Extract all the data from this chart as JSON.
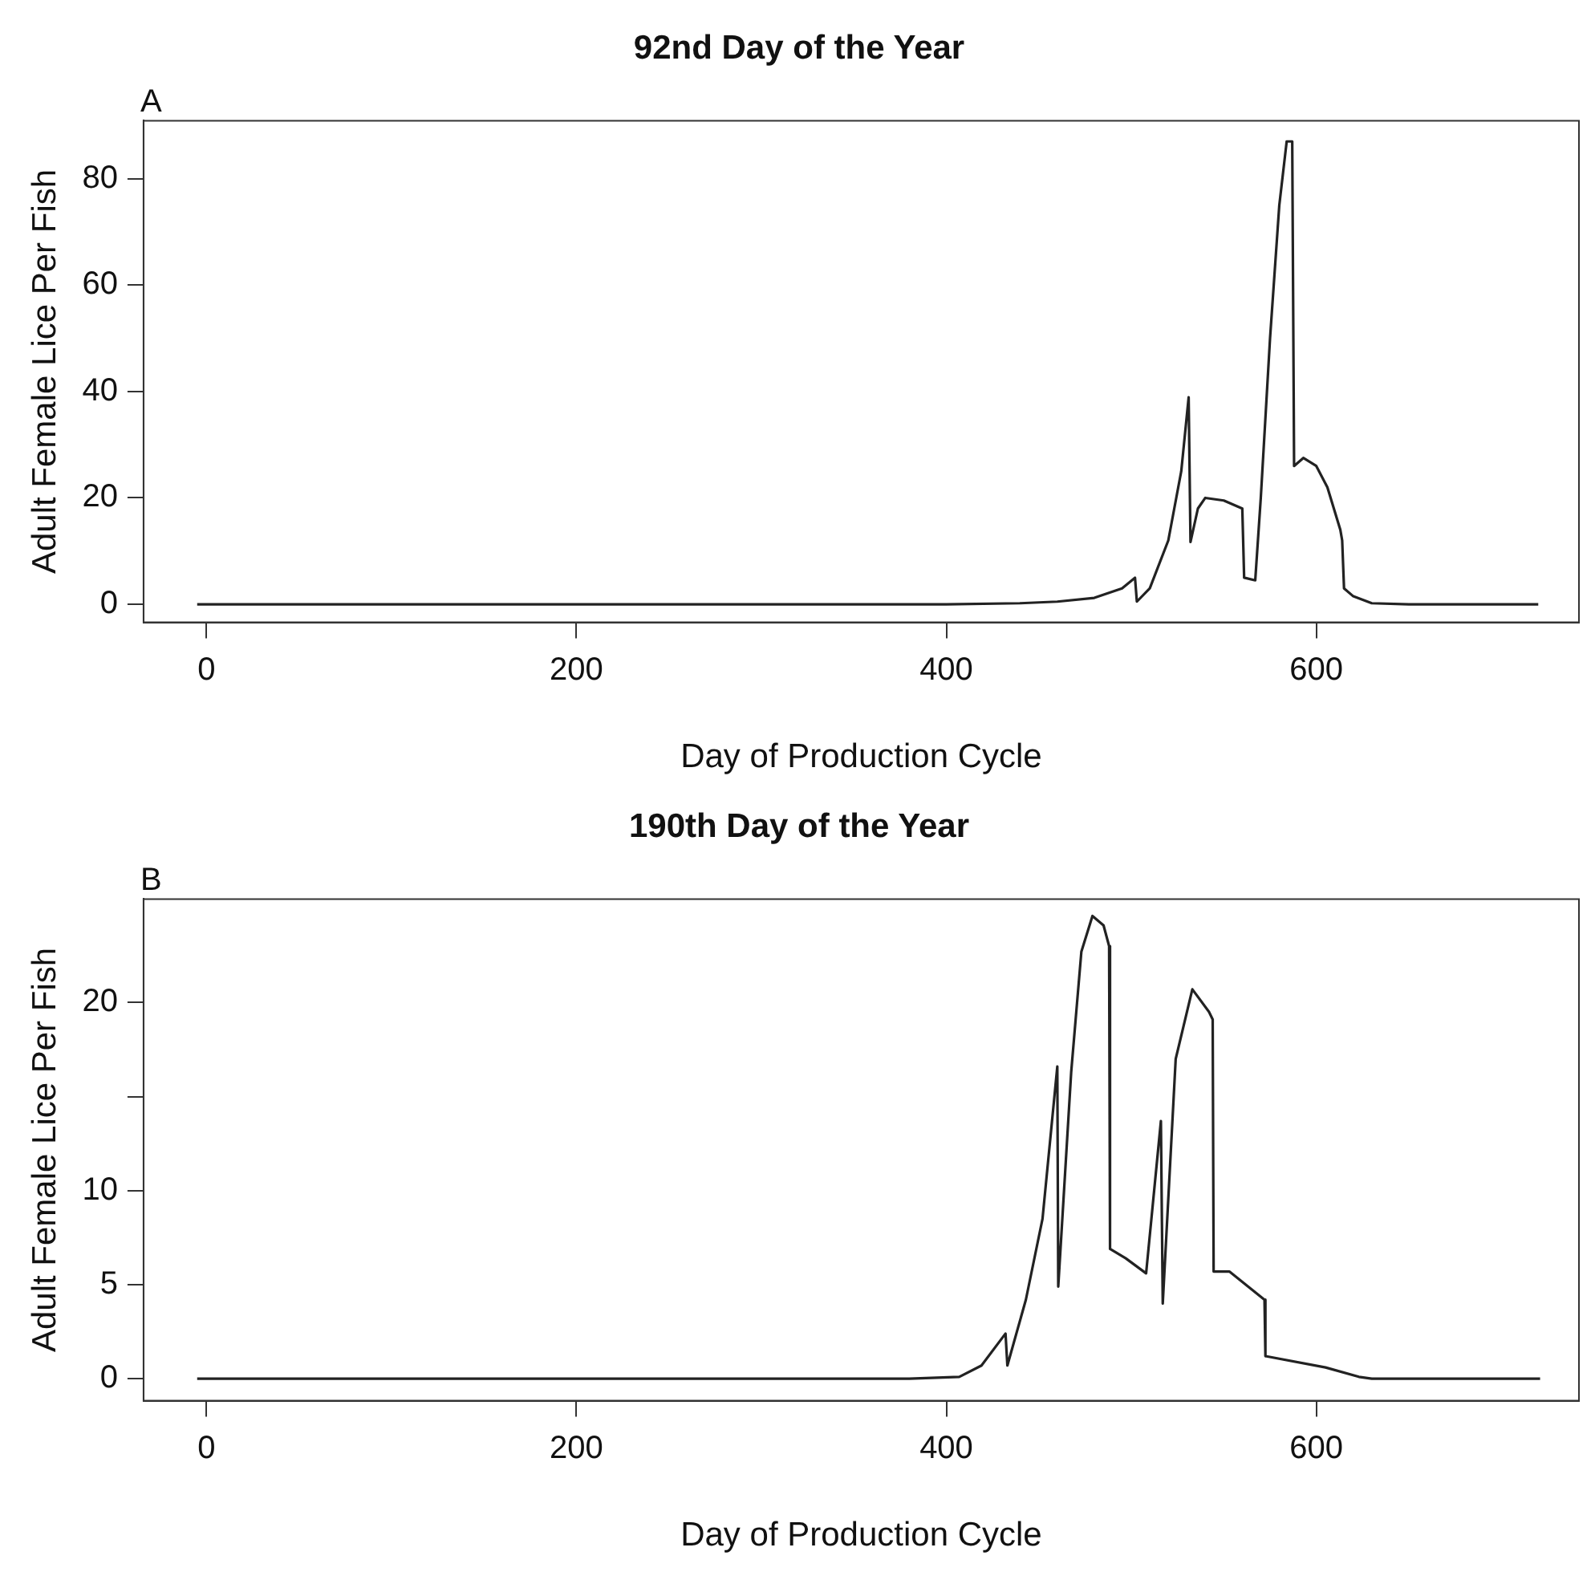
{
  "chart_data": [
    {
      "type": "line",
      "title": "92nd Day of the Year",
      "xlabel": "Day of Production Cycle",
      "ylabel": "Adult Female Lice Per Fish",
      "annotations": [
        "A"
      ],
      "xlim": [
        -34,
        742
      ],
      "ylim": [
        -3.4,
        90.9
      ],
      "xticks": [
        0,
        200,
        400,
        600
      ],
      "yticks": [
        0,
        20,
        40,
        60,
        80
      ],
      "marker": "none",
      "series": [
        {
          "color": "#222222",
          "x": [
            -5,
            100,
            200,
            300,
            400,
            440,
            460,
            480,
            495,
            502,
            503,
            510,
            520,
            527,
            531,
            532,
            536,
            540,
            550,
            560,
            561,
            567,
            570,
            575,
            580,
            584,
            587,
            588,
            593,
            600,
            606,
            613,
            614,
            615,
            620,
            630,
            650,
            720
          ],
          "values": [
            0,
            0,
            0,
            0,
            0,
            0.2,
            0.5,
            1.2,
            3,
            5,
            0.5,
            3,
            12,
            25,
            38.9,
            11.7,
            18,
            20,
            19.5,
            18,
            5,
            4.5,
            20,
            50,
            75,
            87,
            87,
            26,
            27.5,
            26,
            22,
            14,
            12,
            3,
            1.5,
            0.2,
            0,
            0
          ]
        }
      ]
    },
    {
      "type": "line",
      "title": "190th Day of the Year",
      "xlabel": "Day of Production Cycle",
      "ylabel": "Adult Female Lice Per Fish",
      "annotations": [
        "B"
      ],
      "xlim": [
        -34,
        742
      ],
      "ylim": [
        -1.17,
        25.5
      ],
      "xticks": [
        0,
        200,
        400,
        600
      ],
      "yticks": [
        0,
        5,
        10,
        {
          "value": 15,
          "label": null
        },
        20
      ],
      "marker": "none",
      "series": [
        {
          "color": "#222222",
          "x": [
            -5,
            100,
            200,
            300,
            380,
            407,
            419,
            432,
            433,
            443,
            452,
            460,
            460.5,
            467.5,
            473,
            479,
            485,
            488,
            488.5,
            497,
            508,
            516,
            517,
            524,
            533,
            542,
            544,
            544.5,
            553,
            572,
            572.5,
            605,
            623,
            630,
            721
          ],
          "values": [
            0,
            0,
            0,
            0,
            0,
            0.1,
            0.7,
            2.4,
            0.7,
            4.2,
            8.5,
            16.6,
            4.9,
            16.3,
            22.7,
            24.6,
            24.1,
            23,
            6.9,
            6.4,
            5.6,
            13.7,
            4,
            17,
            20.7,
            19.5,
            19.1,
            5.7,
            5.7,
            4.2,
            1.2,
            0.6,
            0.1,
            0,
            0
          ]
        }
      ]
    }
  ]
}
